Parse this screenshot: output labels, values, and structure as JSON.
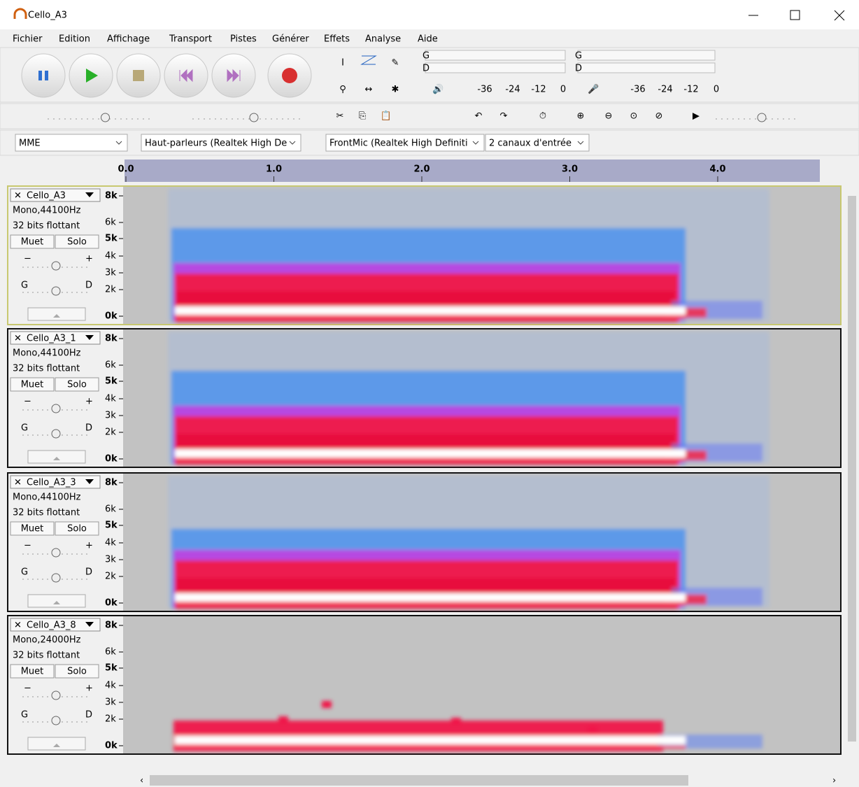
{
  "window": {
    "title": "Cello_A3"
  },
  "menu": [
    "Fichier",
    "Edition",
    "Affichage",
    "Transport",
    "Pistes",
    "Générer",
    "Effets",
    "Analyse",
    "Aide"
  ],
  "meters": [
    {
      "channels": [
        "G",
        "D"
      ],
      "scale": [
        "-36",
        "-24",
        "-12",
        "0"
      ]
    },
    {
      "channels": [
        "G",
        "D"
      ],
      "scale": [
        "-36",
        "-24",
        "-12",
        "0"
      ]
    }
  ],
  "devices": {
    "host": "MME",
    "output": "Haut-parleurs (Realtek High De",
    "input": "FrontMic (Realtek High Definiti",
    "channels": "2 canaux d'entrée"
  },
  "timeline": [
    "0.0",
    "1.0",
    "2.0",
    "3.0",
    "4.0"
  ],
  "tracks": [
    {
      "name": "Cello_A3",
      "rate": "Mono,44100Hz",
      "format": "32 bits flottant",
      "mute": "Muet",
      "solo": "Solo",
      "pan_left": "G",
      "pan_right": "D",
      "freq_labels": [
        "8k",
        "6k",
        "5k",
        "4k",
        "3k",
        "2k",
        "0k"
      ]
    },
    {
      "name": "Cello_A3_1",
      "rate": "Mono,44100Hz",
      "format": "32 bits flottant",
      "mute": "Muet",
      "solo": "Solo",
      "pan_left": "G",
      "pan_right": "D",
      "freq_labels": [
        "8k",
        "6k",
        "5k",
        "4k",
        "3k",
        "2k",
        "0k"
      ]
    },
    {
      "name": "Cello_A3_3",
      "rate": "Mono,44100Hz",
      "format": "32 bits flottant",
      "mute": "Muet",
      "solo": "Solo",
      "pan_left": "G",
      "pan_right": "D",
      "freq_labels": [
        "8k",
        "6k",
        "5k",
        "4k",
        "3k",
        "2k",
        "0k"
      ]
    },
    {
      "name": "Cello_A3_8",
      "rate": "Mono,24000Hz",
      "format": "32 bits flottant",
      "mute": "Muet",
      "solo": "Solo",
      "pan_left": "G",
      "pan_right": "D",
      "freq_labels": [
        "8k",
        "6k",
        "5k",
        "4k",
        "3k",
        "2k",
        "0k"
      ]
    }
  ]
}
